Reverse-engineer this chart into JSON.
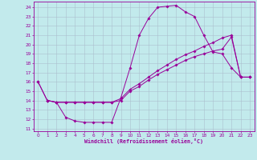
{
  "xlabel": "Windchill (Refroidissement éolien,°C)",
  "bg_color": "#c2eaec",
  "line_color": "#990099",
  "grid_color": "#aabbcc",
  "xlim_min": -0.5,
  "xlim_max": 23.5,
  "ylim_min": 10.7,
  "ylim_max": 24.6,
  "xticks": [
    0,
    1,
    2,
    3,
    4,
    5,
    6,
    7,
    8,
    9,
    10,
    11,
    12,
    13,
    14,
    15,
    16,
    17,
    18,
    19,
    20,
    21,
    22,
    23
  ],
  "yticks": [
    11,
    12,
    13,
    14,
    15,
    16,
    17,
    18,
    19,
    20,
    21,
    22,
    23,
    24
  ],
  "curve1_x": [
    0,
    1,
    2,
    3,
    4,
    5,
    6,
    7,
    8,
    9,
    10,
    11,
    12,
    13,
    14,
    15,
    16,
    17,
    18,
    19,
    20,
    21,
    22,
    23
  ],
  "curve1_y": [
    16.0,
    14.0,
    13.8,
    12.2,
    11.8,
    11.65,
    11.65,
    11.65,
    11.65,
    14.3,
    17.5,
    21.0,
    22.8,
    24.0,
    24.1,
    24.2,
    23.5,
    23.0,
    21.0,
    19.2,
    19.0,
    17.5,
    16.5,
    16.5
  ],
  "curve2_x": [
    0,
    1,
    2,
    3,
    4,
    5,
    6,
    7,
    8,
    9,
    10,
    11,
    12,
    13,
    14,
    15,
    16,
    17,
    18,
    19,
    20,
    21,
    22,
    23
  ],
  "curve2_y": [
    16.0,
    14.0,
    13.8,
    13.8,
    13.8,
    13.8,
    13.8,
    13.8,
    13.8,
    14.0,
    15.0,
    15.5,
    16.2,
    16.8,
    17.3,
    17.8,
    18.3,
    18.7,
    19.0,
    19.3,
    19.5,
    20.8,
    16.5,
    16.5
  ],
  "curve3_x": [
    1,
    2,
    3,
    4,
    5,
    6,
    7,
    8,
    9,
    10,
    11,
    12,
    13,
    14,
    15,
    16,
    17,
    18,
    19,
    20,
    21,
    22,
    23
  ],
  "curve3_y": [
    14.0,
    13.8,
    13.8,
    13.8,
    13.8,
    13.8,
    13.8,
    13.8,
    14.2,
    15.2,
    15.8,
    16.5,
    17.2,
    17.8,
    18.4,
    18.9,
    19.3,
    19.8,
    20.2,
    20.7,
    21.0,
    16.5,
    16.5
  ],
  "markersize": 1.8,
  "linewidth": 0.7,
  "tick_fontsize": 4.2,
  "xlabel_fontsize": 4.8
}
